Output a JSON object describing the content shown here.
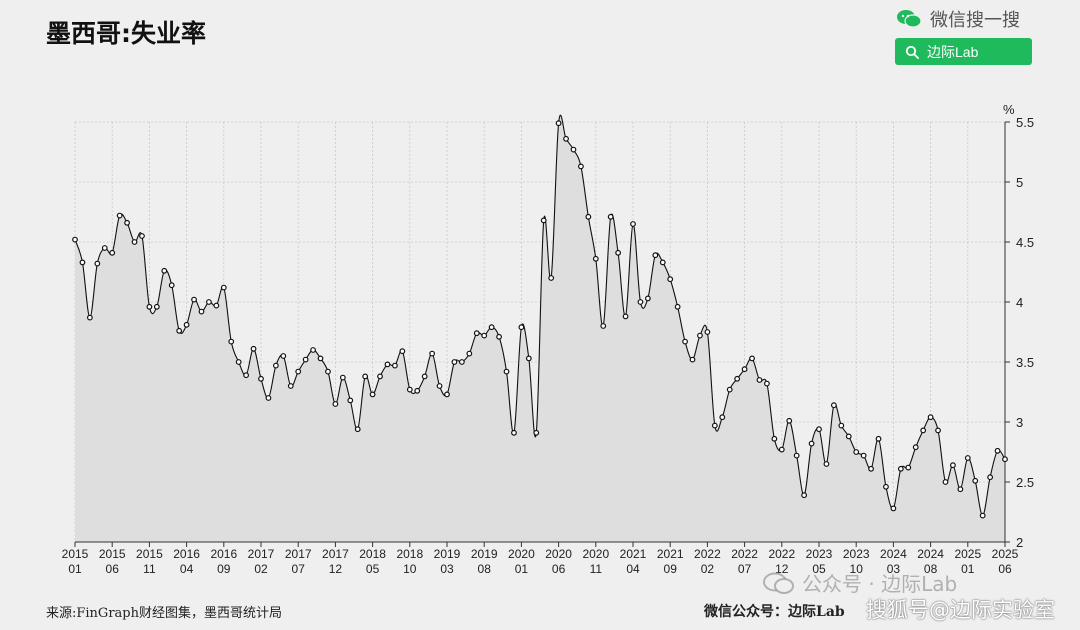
{
  "header": {
    "title": "墨西哥:失业率",
    "brand": "微信搜一搜",
    "search_label": "边际Lab"
  },
  "footer": {
    "source": "来源:FinGraph财经图集，墨西哥统计局",
    "credit": "微信公众号：边际Lab",
    "watermark_1": "公众号 · 边际Lab",
    "watermark_2": "搜狐号@边际实验室"
  },
  "colors": {
    "background": "#efefef",
    "plot_bg": "#efefef",
    "area_fill": "#dedede",
    "line": "#111111",
    "grid": "#c9c9c9",
    "brand_green": "#1fba5c"
  },
  "chart_data": {
    "type": "area",
    "title": "墨西哥:失业率",
    "unit_label": "%",
    "ylim": [
      2,
      5.5
    ],
    "yticks": [
      "2",
      "2.5",
      "3",
      "3.5",
      "4",
      "4.5",
      "5",
      "5.5"
    ],
    "grid": true,
    "markers": true,
    "x_start": "2015-01",
    "x_end": "2025-06",
    "xticks": [
      [
        "2015",
        "01"
      ],
      [
        "2015",
        "06"
      ],
      [
        "2015",
        "11"
      ],
      [
        "2016",
        "04"
      ],
      [
        "2016",
        "09"
      ],
      [
        "2017",
        "02"
      ],
      [
        "2017",
        "07"
      ],
      [
        "2017",
        "12"
      ],
      [
        "2018",
        "05"
      ],
      [
        "2018",
        "10"
      ],
      [
        "2019",
        "03"
      ],
      [
        "2019",
        "08"
      ],
      [
        "2020",
        "01"
      ],
      [
        "2020",
        "06"
      ],
      [
        "2020",
        "11"
      ],
      [
        "2021",
        "04"
      ],
      [
        "2021",
        "09"
      ],
      [
        "2022",
        "02"
      ],
      [
        "2022",
        "07"
      ],
      [
        "2022",
        "12"
      ],
      [
        "2023",
        "05"
      ],
      [
        "2023",
        "10"
      ],
      [
        "2024",
        "03"
      ],
      [
        "2024",
        "08"
      ],
      [
        "2025",
        "01"
      ],
      [
        "2025",
        "06"
      ]
    ],
    "series": [
      {
        "values": [
          4.52,
          4.33,
          3.87,
          4.32,
          4.45,
          4.41,
          4.72,
          4.66,
          4.5,
          4.55,
          3.96,
          3.96,
          4.26,
          4.14,
          3.76,
          3.81,
          4.02,
          3.92,
          4.0,
          3.97,
          4.12,
          3.67,
          3.5,
          3.39,
          3.61,
          3.36,
          3.2,
          3.47,
          3.55,
          3.3,
          3.42,
          3.52,
          3.6,
          3.53,
          3.42,
          3.15,
          3.37,
          3.18,
          2.94,
          3.38,
          3.23,
          3.38,
          3.48,
          3.47,
          3.59,
          3.27,
          3.26,
          3.38,
          3.57,
          3.3,
          3.23,
          3.5,
          3.5,
          3.57,
          3.74,
          3.72,
          3.79,
          3.71,
          3.42,
          2.91,
          3.79,
          3.53,
          2.91,
          4.68,
          4.2,
          5.49,
          5.36,
          5.27,
          5.13,
          4.71,
          4.36,
          3.8,
          4.71,
          4.41,
          3.88,
          4.65,
          4.0,
          4.03,
          4.39,
          4.33,
          4.19,
          3.96,
          3.67,
          3.52,
          3.72,
          3.75,
          2.97,
          3.04,
          3.27,
          3.36,
          3.44,
          3.53,
          3.35,
          3.32,
          2.86,
          2.77,
          3.01,
          2.72,
          2.39,
          2.82,
          2.94,
          2.65,
          3.14,
          2.97,
          2.88,
          2.75,
          2.72,
          2.61,
          2.86,
          2.46,
          2.28,
          2.61,
          2.62,
          2.79,
          2.93,
          3.04,
          2.93,
          2.5,
          2.64,
          2.44,
          2.7,
          2.51,
          2.22,
          2.54,
          2.76,
          2.69
        ]
      }
    ]
  }
}
